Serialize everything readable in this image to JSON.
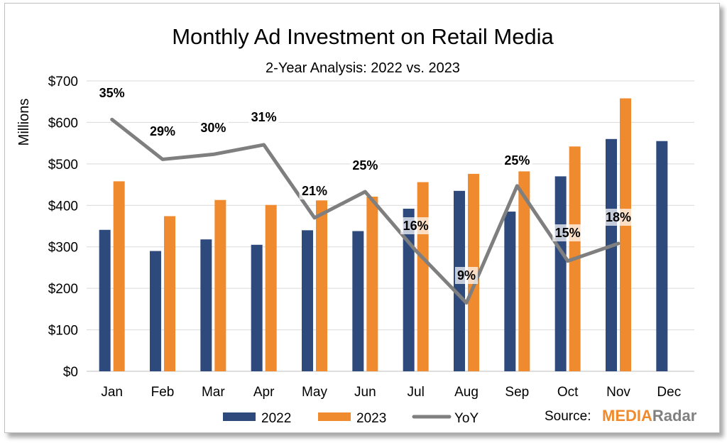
{
  "chart_data": {
    "type": "bar",
    "title": "Monthly Ad Investment on Retail Media",
    "subtitle": "2-Year Analysis: 2022 vs. 2023",
    "ylabel": "Millions",
    "xlabel": "",
    "ylim": [
      0,
      700
    ],
    "yticks": [
      0,
      100,
      200,
      300,
      400,
      500,
      600,
      700
    ],
    "ytick_labels": [
      "$0",
      "$100",
      "$200",
      "$300",
      "$400",
      "$500",
      "$600",
      "$700"
    ],
    "grid": true,
    "legend_position": "bottom",
    "categories": [
      "Jan",
      "Feb",
      "Mar",
      "Apr",
      "May",
      "Jun",
      "Jul",
      "Aug",
      "Sep",
      "Oct",
      "Nov",
      "Dec"
    ],
    "series": [
      {
        "name": "2022",
        "type": "bar",
        "color": "#2e4a7d",
        "values": [
          341,
          290,
          318,
          305,
          340,
          338,
          392,
          435,
          385,
          470,
          560,
          555
        ]
      },
      {
        "name": "2023",
        "type": "bar",
        "color": "#f08a2e",
        "values": [
          458,
          374,
          413,
          401,
          412,
          421,
          456,
          476,
          482,
          542,
          658,
          null
        ]
      },
      {
        "name": "YoY",
        "type": "line",
        "color": "#7f7f7f",
        "values": [
          607,
          511,
          523,
          546,
          370,
          433,
          291,
          165,
          447,
          266,
          308,
          null
        ],
        "labels": [
          "35%",
          "29%",
          "30%",
          "31%",
          "21%",
          "25%",
          "16%",
          "9%",
          "25%",
          "15%",
          "18%",
          ""
        ]
      }
    ]
  },
  "footer": {
    "source_label": "Source:",
    "logo_part1": "MEDIA",
    "logo_part2": "Radar"
  }
}
